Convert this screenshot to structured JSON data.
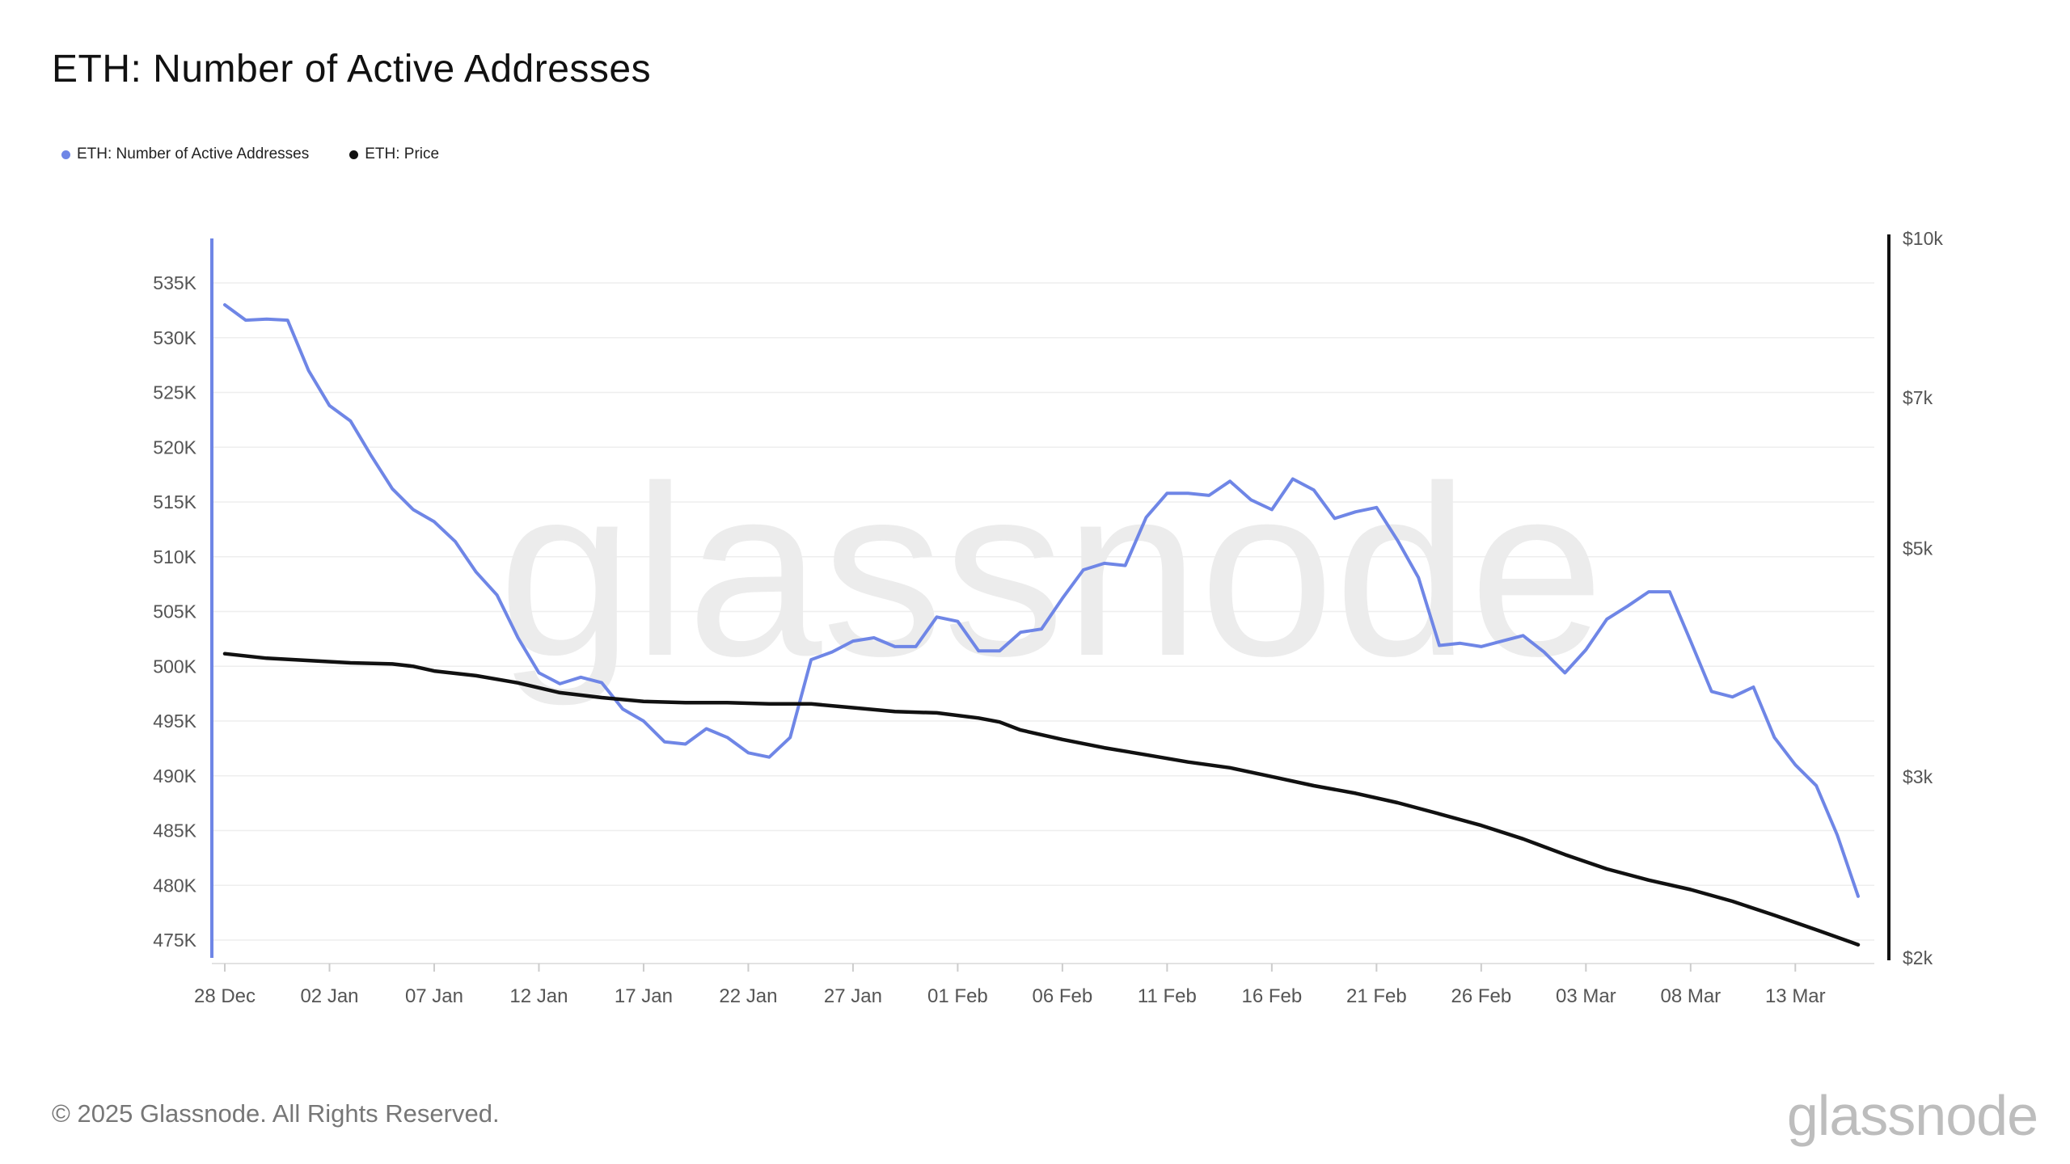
{
  "title": "ETH: Number of Active Addresses",
  "legend": [
    {
      "label": "ETH: Number of Active Addresses",
      "color": "#6f86e6"
    },
    {
      "label": "ETH: Price",
      "color": "#111111"
    }
  ],
  "watermark": "glassnode",
  "footer": {
    "copyright": "© 2025 Glassnode. All Rights Reserved.",
    "logo": "glassnode"
  },
  "chart_data": {
    "type": "line",
    "title": "ETH: Number of Active Addresses",
    "x_tick_labels": [
      "28 Dec",
      "02 Jan",
      "07 Jan",
      "12 Jan",
      "17 Jan",
      "22 Jan",
      "27 Jan",
      "01 Feb",
      "06 Feb",
      "11 Feb",
      "16 Feb",
      "21 Feb",
      "26 Feb",
      "03 Mar",
      "08 Mar",
      "13 Mar"
    ],
    "x_tick_days": [
      0,
      5,
      10,
      15,
      20,
      25,
      30,
      35,
      40,
      45,
      50,
      55,
      60,
      65,
      70,
      75
    ],
    "x_range_days": [
      0,
      78
    ],
    "left_axis": {
      "ticks": [
        475000,
        480000,
        485000,
        490000,
        495000,
        500000,
        505000,
        510000,
        515000,
        520000,
        525000,
        530000,
        535000
      ],
      "tick_labels": [
        "475K",
        "480K",
        "485K",
        "490K",
        "495K",
        "500K",
        "505K",
        "510K",
        "515K",
        "520K",
        "525K",
        "530K",
        "535K"
      ],
      "range": [
        473000,
        539000
      ]
    },
    "right_axis": {
      "scale": "log",
      "ticks": [
        2000,
        3000,
        5000,
        7000,
        10000
      ],
      "tick_labels": [
        "$2k",
        "$3k",
        "$5k",
        "$7k",
        "$10k"
      ],
      "range": [
        2000,
        10000
      ]
    },
    "grid": true,
    "legend_position": "top-left",
    "series": [
      {
        "name": "ETH: Number of Active Addresses",
        "axis": "left",
        "color": "#6f86e6",
        "x_days": [
          0,
          1,
          2,
          3,
          4,
          5,
          6,
          7,
          8,
          9,
          10,
          11,
          12,
          13,
          14,
          15,
          16,
          17,
          18,
          19,
          20,
          21,
          22,
          23,
          24,
          25,
          26,
          27,
          28,
          29,
          30,
          31,
          32,
          33,
          34,
          35,
          36,
          37,
          38,
          39,
          40,
          41,
          42,
          43,
          44,
          45,
          46,
          47,
          48,
          49,
          50,
          51,
          52,
          53,
          54,
          55,
          56,
          57,
          58,
          59,
          60,
          61,
          62,
          63,
          64,
          65,
          66,
          67,
          68,
          69,
          70,
          71,
          72,
          73,
          74,
          75,
          76,
          77,
          78
        ],
        "values": [
          533000,
          531600,
          531700,
          531600,
          527000,
          523800,
          522400,
          519200,
          516200,
          514300,
          513200,
          511400,
          508600,
          506500,
          502600,
          499400,
          498400,
          499000,
          498500,
          496100,
          495000,
          493100,
          492900,
          494300,
          493500,
          492100,
          491700,
          493500,
          500600,
          501300,
          502300,
          502600,
          501800,
          501800,
          504500,
          504100,
          501400,
          501400,
          503100,
          503400,
          506200,
          508800,
          509400,
          509200,
          513600,
          515800,
          515800,
          515600,
          516900,
          515200,
          514300,
          517100,
          516100,
          513500,
          514100,
          514500,
          511500,
          508100,
          501900,
          502100,
          501800,
          502300,
          502800,
          501300,
          499400,
          501500,
          504300,
          505500,
          506800,
          506800,
          502300,
          497700,
          497200,
          498100,
          493500,
          491000,
          489100,
          484600,
          479000
        ]
      },
      {
        "name": "ETH: Price",
        "axis": "right",
        "color": "#111111",
        "x_days": [
          0,
          2,
          4,
          6,
          8,
          9,
          10,
          12,
          14,
          16,
          18,
          20,
          22,
          24,
          26,
          28,
          30,
          32,
          34,
          36,
          37,
          38,
          40,
          42,
          44,
          46,
          48,
          50,
          52,
          54,
          56,
          58,
          60,
          62,
          64,
          66,
          68,
          70,
          72,
          74,
          76,
          78
        ],
        "values": [
          3950,
          3910,
          3890,
          3870,
          3860,
          3840,
          3800,
          3760,
          3700,
          3620,
          3580,
          3550,
          3540,
          3540,
          3530,
          3530,
          3500,
          3470,
          3460,
          3420,
          3390,
          3330,
          3260,
          3200,
          3150,
          3100,
          3060,
          3000,
          2940,
          2890,
          2830,
          2760,
          2690,
          2610,
          2520,
          2440,
          2380,
          2330,
          2270,
          2200,
          2130,
          2060
        ]
      }
    ]
  }
}
